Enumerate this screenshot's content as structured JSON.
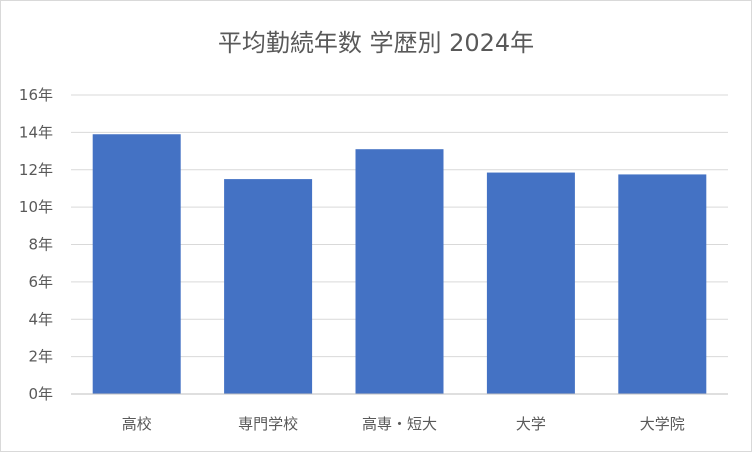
{
  "chart_data": {
    "type": "bar",
    "title": "平均勤続年数 学歴別 2024年",
    "categories": [
      "高校",
      "専門学校",
      "高専・短大",
      "大学",
      "大学院"
    ],
    "values": [
      13.9,
      11.5,
      13.1,
      11.85,
      11.75
    ],
    "ylim": [
      0,
      16
    ],
    "yticks": [
      "0年",
      "2年",
      "4年",
      "6年",
      "8年",
      "10年",
      "12年",
      "14年",
      "16年"
    ],
    "xlabel": "",
    "ylabel": "",
    "grid": true,
    "bar_color": "#4472c4",
    "grid_color": "#d9d9d9",
    "axis_color": "#bfbfbf"
  }
}
